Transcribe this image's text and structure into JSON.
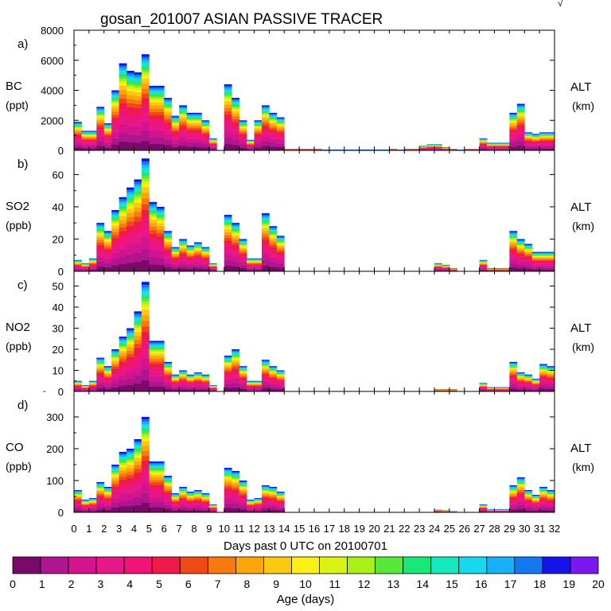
{
  "title": "gosan_201007 ASIAN PASSIVE TRACER",
  "corner_mark": "√",
  "x_axis": {
    "label": "Days past 0 UTC on 20100701",
    "min": 0,
    "max": 32,
    "ticks": [
      "0",
      "1",
      "2",
      "3",
      "4",
      "5",
      "6",
      "7",
      "8",
      "9",
      "10",
      "11",
      "12",
      "13",
      "14",
      "15",
      "16",
      "17",
      "18",
      "19",
      "20",
      "21",
      "22",
      "23",
      "24",
      "25",
      "26",
      "27",
      "28",
      "29",
      "30",
      "31",
      "32"
    ]
  },
  "colorbar": {
    "label": "Age (days)",
    "ticks": [
      "0",
      "1",
      "2",
      "3",
      "4",
      "5",
      "6",
      "7",
      "8",
      "9",
      "10",
      "11",
      "12",
      "13",
      "14",
      "15",
      "16",
      "17",
      "18",
      "19",
      "20"
    ],
    "colors": [
      "#7a0a6a",
      "#b0158f",
      "#d4148f",
      "#e8168b",
      "#f01478",
      "#f01a4a",
      "#f04a14",
      "#f87a0c",
      "#fca40c",
      "#fcc810",
      "#fcf014",
      "#d8f414",
      "#a8f018",
      "#58e838",
      "#18e878",
      "#18e8c0",
      "#18d8f0",
      "#18b0f8",
      "#1478f0",
      "#1414e8",
      "#7a18f0"
    ]
  },
  "right_label": {
    "line1": "ALT",
    "line2": "(km)"
  },
  "panel_left_mark": "-",
  "chart_data": [
    {
      "panel": "a)",
      "type": "area",
      "species": "BC",
      "unit": "(ppt)",
      "ylim": [
        0,
        8000
      ],
      "yticks": [
        "0",
        "2000",
        "4000",
        "6000",
        "8000"
      ],
      "ytick_values": [
        0,
        2000,
        4000,
        6000,
        8000
      ],
      "x": [
        0,
        0.5,
        1,
        1.5,
        2,
        2.5,
        3,
        3.5,
        4,
        4.5,
        5,
        5.5,
        6,
        6.5,
        7,
        7.5,
        8,
        8.5,
        9,
        9.5,
        10,
        10.5,
        11,
        11.5,
        12,
        12.5,
        13,
        13.5,
        14,
        14.5,
        15,
        15.5,
        16,
        16.5,
        17,
        17.5,
        18,
        18.5,
        19,
        19.5,
        20,
        20.5,
        21,
        21.5,
        22,
        22.5,
        23,
        23.5,
        24,
        24.5,
        25,
        25.5,
        26,
        26.5,
        27,
        27.5,
        28,
        28.5,
        29,
        29.5,
        30,
        30.5,
        31,
        31.5
      ],
      "values": [
        1900,
        1300,
        1300,
        2900,
        1800,
        4000,
        5800,
        5300,
        5200,
        6400,
        4300,
        4300,
        3500,
        2300,
        3000,
        2500,
        2500,
        2000,
        800,
        0,
        4400,
        3500,
        2000,
        700,
        2000,
        3000,
        2500,
        2200,
        100,
        100,
        100,
        100,
        100,
        50,
        50,
        50,
        50,
        50,
        50,
        50,
        50,
        50,
        100,
        50,
        100,
        100,
        300,
        400,
        400,
        200,
        100,
        50,
        100,
        100,
        800,
        500,
        500,
        500,
        2500,
        3100,
        1200,
        1100,
        1200,
        1200
      ]
    },
    {
      "panel": "b)",
      "type": "area",
      "species": "SO2",
      "unit": "(ppb)",
      "ylim": [
        0,
        75
      ],
      "yticks": [
        "0",
        "20",
        "40",
        "60"
      ],
      "ytick_values": [
        0,
        20,
        40,
        60
      ],
      "x": [
        0,
        0.5,
        1,
        1.5,
        2,
        2.5,
        3,
        3.5,
        4,
        4.5,
        5,
        5.5,
        6,
        6.5,
        7,
        7.5,
        8,
        8.5,
        9,
        9.5,
        10,
        10.5,
        11,
        11.5,
        12,
        12.5,
        13,
        13.5,
        14,
        14.5,
        15,
        15.5,
        16,
        16.5,
        17,
        17.5,
        18,
        18.5,
        19,
        19.5,
        20,
        20.5,
        21,
        21.5,
        22,
        22.5,
        23,
        23.5,
        24,
        24.5,
        25,
        25.5,
        26,
        26.5,
        27,
        27.5,
        28,
        28.5,
        29,
        29.5,
        30,
        30.5,
        31,
        31.5
      ],
      "values": [
        7,
        5,
        8,
        30,
        25,
        38,
        46,
        52,
        57,
        70,
        43,
        40,
        25,
        15,
        20,
        16,
        18,
        15,
        5,
        0,
        35,
        30,
        20,
        8,
        8,
        36,
        28,
        22,
        0,
        0,
        0,
        0,
        0,
        0,
        0,
        0,
        0,
        0,
        0,
        0,
        0,
        0,
        0,
        0,
        0,
        0,
        0,
        0,
        5,
        4,
        2,
        0,
        0,
        0,
        7,
        2,
        2,
        2,
        25,
        20,
        17,
        12,
        12,
        12
      ]
    },
    {
      "panel": "c)",
      "type": "area",
      "species": "NO2",
      "unit": "(ppb)",
      "ylim": [
        0,
        57
      ],
      "yticks": [
        "0",
        "10",
        "20",
        "30",
        "40",
        "50"
      ],
      "ytick_values": [
        0,
        10,
        20,
        30,
        40,
        50
      ],
      "x": [
        0,
        0.5,
        1,
        1.5,
        2,
        2.5,
        3,
        3.5,
        4,
        4.5,
        5,
        5.5,
        6,
        6.5,
        7,
        7.5,
        8,
        8.5,
        9,
        9.5,
        10,
        10.5,
        11,
        11.5,
        12,
        12.5,
        13,
        13.5,
        14,
        14.5,
        15,
        15.5,
        16,
        16.5,
        17,
        17.5,
        18,
        18.5,
        19,
        19.5,
        20,
        20.5,
        21,
        21.5,
        22,
        22.5,
        23,
        23.5,
        24,
        24.5,
        25,
        25.5,
        26,
        26.5,
        27,
        27.5,
        28,
        28.5,
        29,
        29.5,
        30,
        30.5,
        31,
        31.5
      ],
      "values": [
        5,
        3,
        5,
        16,
        12,
        20,
        26,
        30,
        38,
        52,
        24,
        24,
        14,
        8,
        10,
        8,
        9,
        8,
        3,
        0,
        17,
        20,
        12,
        5,
        5,
        15,
        12,
        10,
        0,
        0,
        0,
        0,
        0,
        0,
        0,
        0,
        0,
        0,
        0,
        0,
        0,
        0,
        0,
        0,
        0,
        0,
        0,
        0,
        1,
        1,
        1,
        0,
        0,
        0,
        4,
        2,
        2,
        2,
        14,
        9,
        8,
        6,
        13,
        12
      ]
    },
    {
      "panel": "d)",
      "type": "area",
      "species": "CO",
      "unit": "(ppb)",
      "ylim": [
        0,
        380
      ],
      "yticks": [
        "0",
        "100",
        "200",
        "300"
      ],
      "ytick_values": [
        0,
        100,
        200,
        300
      ],
      "x": [
        0,
        0.5,
        1,
        1.5,
        2,
        2.5,
        3,
        3.5,
        4,
        4.5,
        5,
        5.5,
        6,
        6.5,
        7,
        7.5,
        8,
        8.5,
        9,
        9.5,
        10,
        10.5,
        11,
        11.5,
        12,
        12.5,
        13,
        13.5,
        14,
        14.5,
        15,
        15.5,
        16,
        16.5,
        17,
        17.5,
        18,
        18.5,
        19,
        19.5,
        20,
        20.5,
        21,
        21.5,
        22,
        22.5,
        23,
        23.5,
        24,
        24.5,
        25,
        25.5,
        26,
        26.5,
        27,
        27.5,
        28,
        28.5,
        29,
        29.5,
        30,
        30.5,
        31,
        31.5
      ],
      "values": [
        70,
        40,
        45,
        95,
        80,
        150,
        190,
        200,
        230,
        300,
        160,
        160,
        115,
        60,
        80,
        65,
        70,
        60,
        25,
        0,
        140,
        130,
        100,
        40,
        45,
        85,
        80,
        65,
        0,
        0,
        0,
        0,
        0,
        0,
        0,
        0,
        0,
        0,
        0,
        0,
        0,
        0,
        0,
        0,
        0,
        0,
        0,
        0,
        8,
        6,
        3,
        0,
        0,
        0,
        25,
        10,
        10,
        10,
        85,
        110,
        70,
        55,
        80,
        70
      ]
    }
  ]
}
